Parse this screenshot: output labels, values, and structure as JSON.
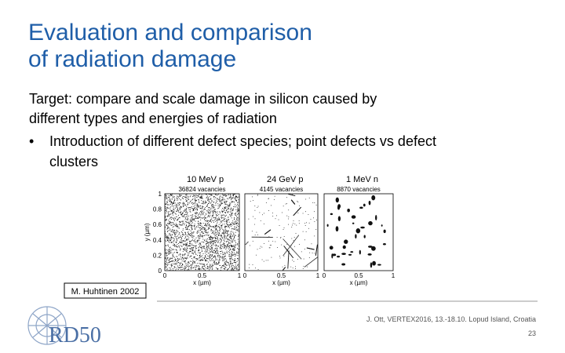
{
  "title": [
    "Evaluation and comparison",
    "of radiation damage"
  ],
  "body": {
    "target": [
      "Target: compare and scale damage in silicon caused by",
      "different types and energies of radiation"
    ],
    "bullet": [
      "Introduction of different defect species; point defects vs defect",
      "clusters"
    ]
  },
  "figure": {
    "panels": [
      {
        "label": "10 MeV p",
        "count": "36824 vacancies"
      },
      {
        "label": "24 GeV p",
        "count": "4145 vacancies"
      },
      {
        "label": "1 MeV n",
        "count": "8870 vacancies"
      }
    ],
    "x_label": "x (µm)",
    "y_label": "y (µm)",
    "x_ticks": [
      "0",
      "0.5",
      "1"
    ],
    "y_ticks": [
      "0",
      "0.2",
      "0.4",
      "0.6",
      "0.8",
      "1"
    ],
    "credit": "M. Huhtinen 2002"
  },
  "footer": {
    "citation": "J. Ott, VERTEX2016, 13.-18.10. Lopud Island, Croatia",
    "page": "23",
    "logo": "RD50"
  }
}
